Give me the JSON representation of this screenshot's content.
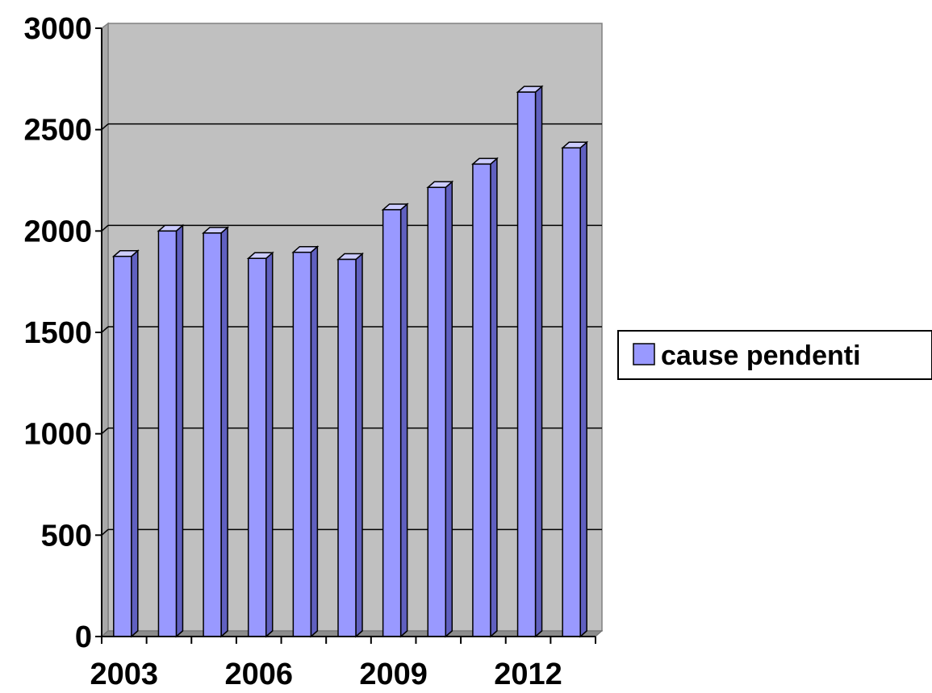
{
  "chart_data": {
    "type": "bar",
    "categories": [
      "2003",
      "2004",
      "2005",
      "2006",
      "2007",
      "2008",
      "2009",
      "2010",
      "2011",
      "2012",
      "2013"
    ],
    "x_tick_labels": [
      "2003",
      "2006",
      "2009",
      "2012"
    ],
    "series": [
      {
        "name": "cause pendenti",
        "values": [
          1875,
          2000,
          1990,
          1865,
          1895,
          1860,
          2105,
          2215,
          2330,
          2685,
          2410
        ]
      }
    ],
    "y_ticks": [
      0,
      500,
      1000,
      1500,
      2000,
      2500,
      3000
    ],
    "ylim": [
      0,
      3000
    ],
    "grid": true,
    "legend_position": "right",
    "colors": {
      "bar_front": "#9999ff",
      "bar_top": "#ccccff",
      "bar_side": "#6060c0",
      "plot_back": "#c0c0c0",
      "floor": "#8c8c8c"
    }
  }
}
